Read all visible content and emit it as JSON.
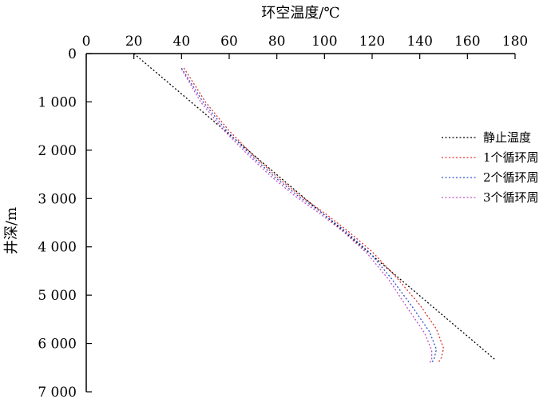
{
  "chart_data": {
    "type": "line",
    "title": "",
    "xlabel": "环空温度/℃",
    "ylabel": "井深/m",
    "x_axis_position": "top",
    "y_axis_inverted": true,
    "xlim": [
      0,
      180
    ],
    "ylim": [
      0,
      7000
    ],
    "x_ticks": [
      0,
      20,
      40,
      60,
      80,
      100,
      120,
      140,
      160,
      180
    ],
    "x_tick_labels": [
      "0",
      "20",
      "40",
      "60",
      "80",
      "100",
      "120",
      "140",
      "160",
      "180"
    ],
    "y_ticks": [
      0,
      1000,
      2000,
      3000,
      4000,
      5000,
      6000,
      7000
    ],
    "y_tick_labels": [
      "0",
      "1 000",
      "2 000",
      "3 000",
      "4 000",
      "5 000",
      "6 000",
      "7 000"
    ],
    "grid": false,
    "legend_position": "right",
    "series": [
      {
        "name": "静止温度",
        "color": "#000000",
        "points": [
          [
            20,
            0
          ],
          [
            172,
            6350
          ]
        ]
      },
      {
        "name": "1个循环周",
        "color": "#e03030",
        "points": [
          [
            41,
            300
          ],
          [
            50,
            1000
          ],
          [
            60,
            1600
          ],
          [
            70,
            2100
          ],
          [
            80,
            2550
          ],
          [
            90,
            2950
          ],
          [
            100,
            3300
          ],
          [
            110,
            3680
          ],
          [
            120,
            4100
          ],
          [
            130,
            4620
          ],
          [
            140,
            5200
          ],
          [
            147,
            5700
          ],
          [
            150,
            6100
          ],
          [
            149,
            6300
          ],
          [
            148,
            6380
          ]
        ]
      },
      {
        "name": "2个循环周",
        "color": "#3050d0",
        "points": [
          [
            40,
            300
          ],
          [
            49,
            1000
          ],
          [
            59,
            1600
          ],
          [
            69,
            2100
          ],
          [
            79,
            2550
          ],
          [
            89,
            2950
          ],
          [
            99,
            3300
          ],
          [
            109,
            3680
          ],
          [
            119,
            4120
          ],
          [
            128,
            4650
          ],
          [
            137,
            5250
          ],
          [
            144,
            5750
          ],
          [
            147,
            6120
          ],
          [
            146,
            6320
          ],
          [
            145,
            6400
          ]
        ]
      },
      {
        "name": "3个循环周",
        "color": "#c050c0",
        "points": [
          [
            40,
            320
          ],
          [
            48,
            1000
          ],
          [
            58,
            1600
          ],
          [
            68,
            2100
          ],
          [
            78,
            2560
          ],
          [
            88,
            2960
          ],
          [
            98,
            3310
          ],
          [
            108,
            3690
          ],
          [
            118,
            4140
          ],
          [
            127,
            4680
          ],
          [
            135,
            5280
          ],
          [
            142,
            5780
          ],
          [
            145,
            6140
          ],
          [
            145,
            6330
          ],
          [
            144,
            6420
          ]
        ]
      }
    ]
  }
}
